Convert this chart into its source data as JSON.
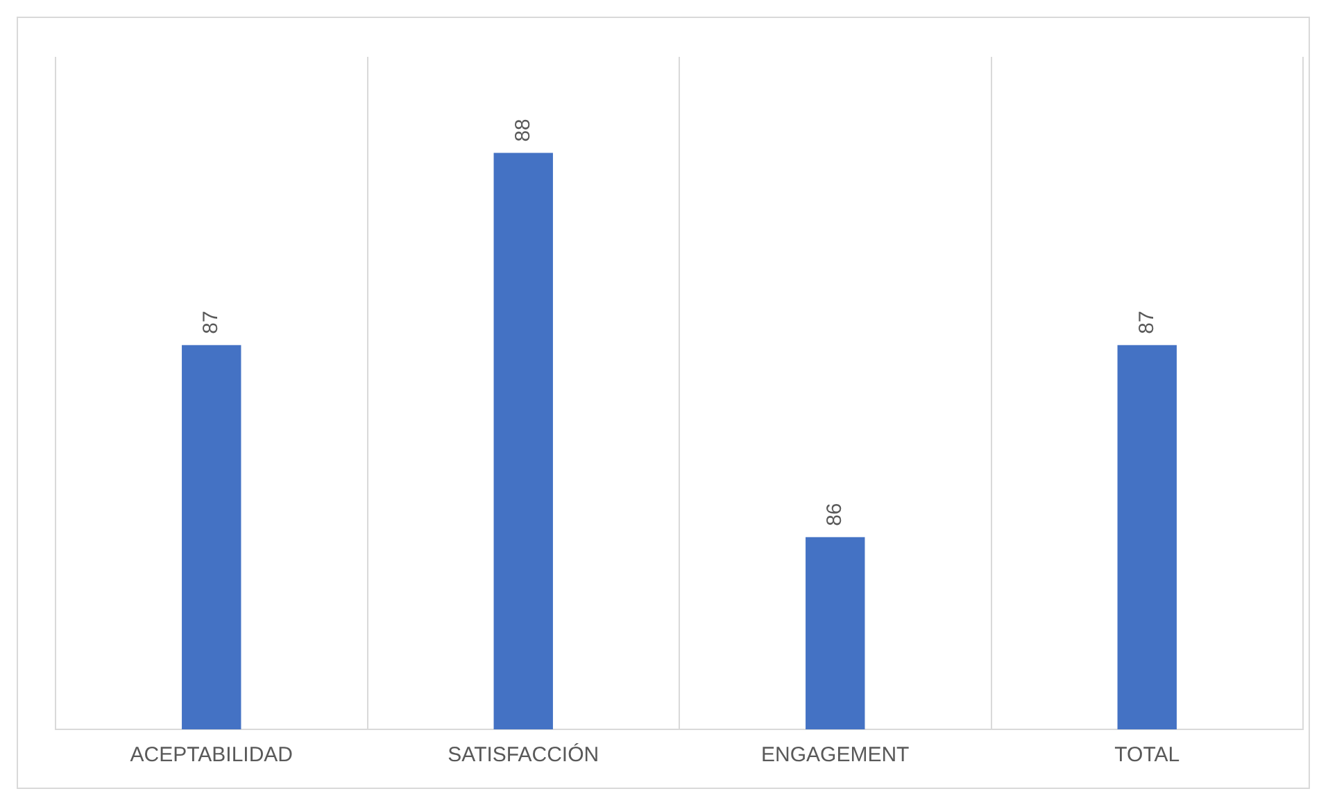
{
  "chart_data": {
    "type": "bar",
    "categories": [
      "ACEPTABILIDAD",
      "SATISFACCIÓN",
      "ENGAGEMENT",
      "TOTAL"
    ],
    "values": [
      87,
      88,
      86,
      87
    ],
    "color": "#4472c4",
    "ylim": [
      85,
      88.5
    ],
    "data_labels": true,
    "grid": "x",
    "tick_labels": "x",
    "legend": false
  }
}
